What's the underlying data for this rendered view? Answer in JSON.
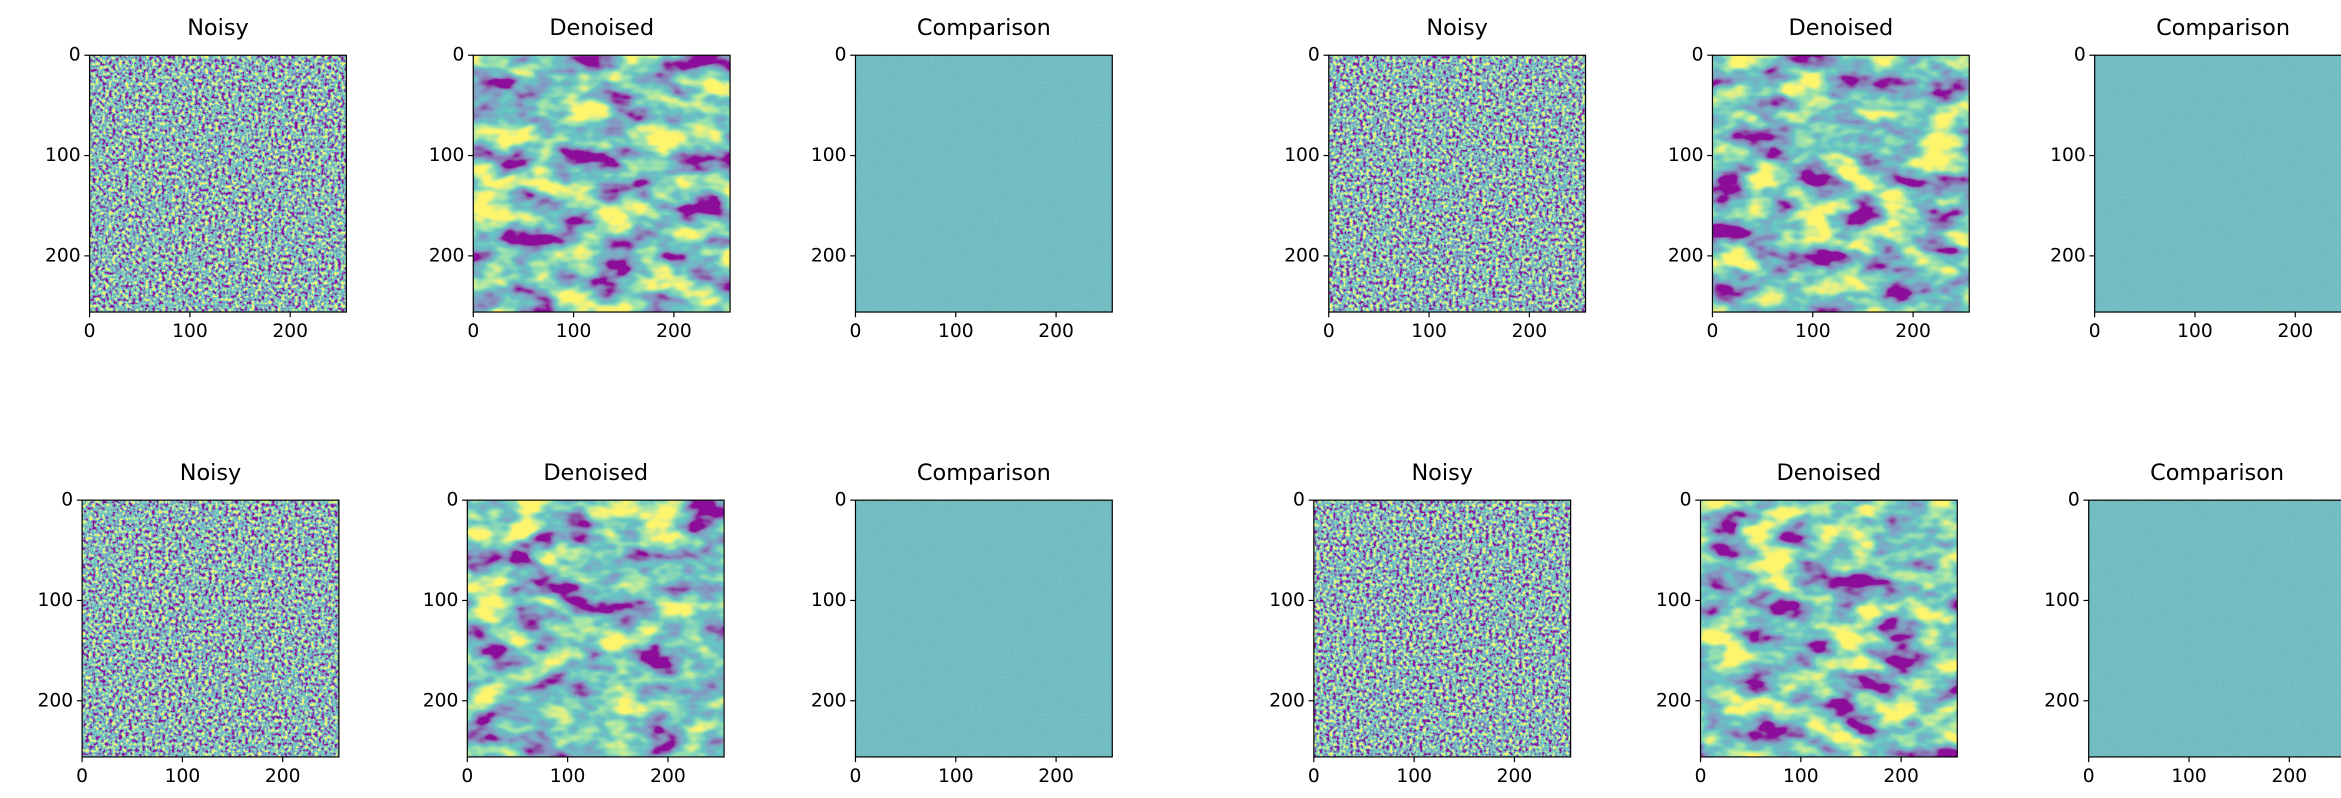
{
  "chart_data": [
    {
      "type": "image",
      "title": "Noisy",
      "xlim": [
        0,
        256
      ],
      "ylim": [
        256,
        0
      ],
      "xticks": [
        0,
        100,
        200
      ],
      "yticks": [
        0,
        100,
        200
      ]
    },
    {
      "type": "image",
      "title": "Denoised",
      "xlim": [
        0,
        256
      ],
      "ylim": [
        256,
        0
      ],
      "xticks": [
        0,
        100,
        200
      ],
      "yticks": [
        0,
        100,
        200
      ]
    },
    {
      "type": "image",
      "title": "Comparison",
      "xlim": [
        0,
        256
      ],
      "ylim": [
        256,
        0
      ],
      "xticks": [
        0,
        100,
        200
      ],
      "yticks": [
        0,
        100,
        200
      ]
    },
    {
      "type": "image",
      "title": "Noisy",
      "xlim": [
        0,
        256
      ],
      "ylim": [
        256,
        0
      ],
      "xticks": [
        0,
        100,
        200
      ],
      "yticks": [
        0,
        100,
        200
      ]
    },
    {
      "type": "image",
      "title": "Denoised",
      "xlim": [
        0,
        256
      ],
      "ylim": [
        256,
        0
      ],
      "xticks": [
        0,
        100,
        200
      ],
      "yticks": [
        0,
        100,
        200
      ]
    },
    {
      "type": "image",
      "title": "Comparison",
      "xlim": [
        0,
        256
      ],
      "ylim": [
        256,
        0
      ],
      "xticks": [
        0,
        100,
        200
      ],
      "yticks": [
        0,
        100,
        200
      ]
    },
    {
      "type": "image",
      "title": "Noisy",
      "xlim": [
        0,
        256
      ],
      "ylim": [
        256,
        0
      ],
      "xticks": [
        0,
        100,
        200
      ],
      "yticks": [
        0,
        100,
        200
      ]
    },
    {
      "type": "image",
      "title": "Denoised",
      "xlim": [
        0,
        256
      ],
      "ylim": [
        256,
        0
      ],
      "xticks": [
        0,
        100,
        200
      ],
      "yticks": [
        0,
        100,
        200
      ]
    },
    {
      "type": "image",
      "title": "Comparison",
      "xlim": [
        0,
        256
      ],
      "ylim": [
        256,
        0
      ],
      "xticks": [
        0,
        100,
        200
      ],
      "yticks": [
        0,
        100,
        200
      ]
    },
    {
      "type": "image",
      "title": "Noisy",
      "xlim": [
        0,
        256
      ],
      "ylim": [
        256,
        0
      ],
      "xticks": [
        0,
        100,
        200
      ],
      "yticks": [
        0,
        100,
        200
      ]
    },
    {
      "type": "image",
      "title": "Denoised",
      "xlim": [
        0,
        256
      ],
      "ylim": [
        256,
        0
      ],
      "xticks": [
        0,
        100,
        200
      ],
      "yticks": [
        0,
        100,
        200
      ]
    },
    {
      "type": "image",
      "title": "Comparison",
      "xlim": [
        0,
        256
      ],
      "ylim": [
        256,
        0
      ],
      "xticks": [
        0,
        100,
        200
      ],
      "yticks": [
        0,
        100,
        200
      ]
    }
  ]
}
